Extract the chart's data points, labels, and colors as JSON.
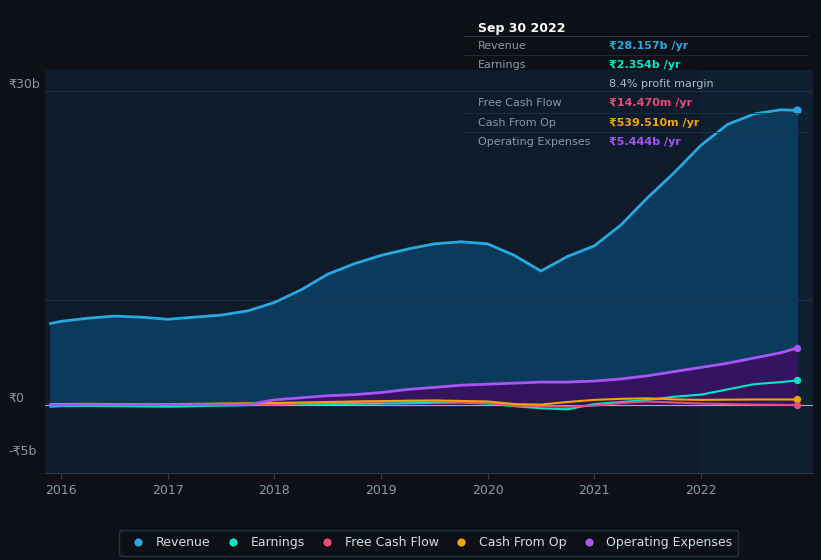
{
  "bg_color": "#0d1117",
  "chart_bg": "#0d1b2a",
  "grid_color": "#1e3048",
  "x_years": [
    2015.9,
    2016.0,
    2016.25,
    2016.5,
    2016.75,
    2017.0,
    2017.25,
    2017.5,
    2017.75,
    2018.0,
    2018.25,
    2018.5,
    2018.75,
    2019.0,
    2019.25,
    2019.5,
    2019.75,
    2020.0,
    2020.25,
    2020.5,
    2020.75,
    2021.0,
    2021.25,
    2021.5,
    2021.75,
    2022.0,
    2022.25,
    2022.5,
    2022.75,
    2022.9
  ],
  "revenue": [
    7.8,
    8.0,
    8.3,
    8.5,
    8.4,
    8.2,
    8.4,
    8.6,
    9.0,
    9.8,
    11.0,
    12.5,
    13.5,
    14.3,
    14.9,
    15.4,
    15.6,
    15.4,
    14.3,
    12.8,
    14.2,
    15.2,
    17.2,
    19.8,
    22.2,
    24.8,
    26.8,
    27.8,
    28.2,
    28.157
  ],
  "earnings": [
    -0.15,
    -0.1,
    -0.08,
    -0.1,
    -0.12,
    -0.15,
    -0.1,
    -0.05,
    0.0,
    0.05,
    0.08,
    0.1,
    0.12,
    0.15,
    0.18,
    0.22,
    0.25,
    0.15,
    -0.1,
    -0.3,
    -0.4,
    0.1,
    0.3,
    0.5,
    0.8,
    1.0,
    1.5,
    2.0,
    2.2,
    2.354
  ],
  "free_cash_flow": [
    0.02,
    0.05,
    0.08,
    0.06,
    0.04,
    0.05,
    0.08,
    0.12,
    0.1,
    0.08,
    0.15,
    0.25,
    0.3,
    0.35,
    0.4,
    0.38,
    0.3,
    0.2,
    -0.05,
    -0.1,
    -0.15,
    -0.05,
    0.2,
    0.35,
    0.25,
    0.15,
    0.1,
    0.05,
    0.02,
    0.01447
  ],
  "cash_from_op": [
    0.08,
    0.1,
    0.12,
    0.1,
    0.09,
    0.1,
    0.12,
    0.15,
    0.18,
    0.2,
    0.25,
    0.3,
    0.35,
    0.38,
    0.42,
    0.45,
    0.4,
    0.35,
    0.1,
    0.05,
    0.3,
    0.5,
    0.6,
    0.65,
    0.55,
    0.5,
    0.52,
    0.54,
    0.54,
    0.53951
  ],
  "operating_expenses": [
    0.0,
    0.02,
    0.03,
    0.03,
    0.03,
    0.04,
    0.04,
    0.05,
    0.06,
    0.5,
    0.7,
    0.9,
    1.0,
    1.2,
    1.5,
    1.7,
    1.9,
    2.0,
    2.1,
    2.2,
    2.2,
    2.3,
    2.5,
    2.8,
    3.2,
    3.6,
    4.0,
    4.5,
    5.0,
    5.444
  ],
  "revenue_color": "#29a8e0",
  "earnings_color": "#00e5c8",
  "fcf_color": "#e84c7d",
  "cfop_color": "#f0a500",
  "opex_color": "#a855f7",
  "revenue_fill": "#0a3a5c",
  "opex_fill": "#3a1060",
  "ylim": [
    -6.5,
    32
  ],
  "xlim": [
    2015.85,
    2023.05
  ],
  "highlight_x_start": 2022.0,
  "xtick_years": [
    2016,
    2017,
    2018,
    2019,
    2020,
    2021,
    2022
  ],
  "ytick_positions": [
    30,
    0
  ],
  "ytick_labels_top": "₹30b",
  "ytick_label_zero": "₹0",
  "ytick_label_bottom": "-₹5b",
  "ytick_bottom_val": -5,
  "legend_entries": [
    "Revenue",
    "Earnings",
    "Free Cash Flow",
    "Cash From Op",
    "Operating Expenses"
  ],
  "legend_colors": [
    "#29a8e0",
    "#00e5c8",
    "#e84c7d",
    "#f0a500",
    "#a855f7"
  ],
  "table_data": {
    "title": "Sep 30 2022",
    "rows": [
      {
        "label": "Revenue",
        "value": "₹28.157b /yr",
        "value_color": "#29a8e0"
      },
      {
        "label": "Earnings",
        "value": "₹2.354b /yr",
        "value_color": "#00e5c8"
      },
      {
        "label": "",
        "value": "8.4% profit margin",
        "value_color": "#aabbcc"
      },
      {
        "label": "Free Cash Flow",
        "value": "₹14.470m /yr",
        "value_color": "#e84c7d"
      },
      {
        "label": "Cash From Op",
        "value": "₹539.510m /yr",
        "value_color": "#f0a500"
      },
      {
        "label": "Operating Expenses",
        "value": "₹5.444b /yr",
        "value_color": "#a855f7"
      }
    ]
  }
}
